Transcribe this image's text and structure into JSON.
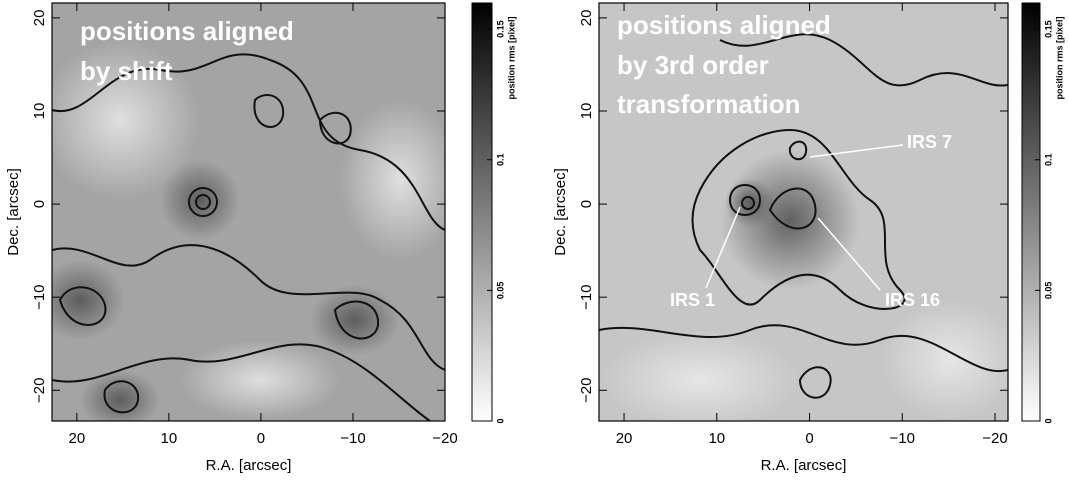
{
  "chart_data": [
    {
      "type": "image",
      "xlabel": "R.A. [arcsec]",
      "ylabel": "Dec. [arcsec]",
      "xlim": [
        22.7,
        -20
      ],
      "ylim": [
        -23.3,
        21.6
      ],
      "xticks": [
        20,
        10,
        0,
        {
          "value": -10,
          "label": "−10"
        },
        {
          "value": -20,
          "label": "−20"
        }
      ],
      "yticks": [
        {
          "value": -20,
          "label": "−20"
        },
        {
          "value": -10,
          "label": "−10"
        },
        0,
        10,
        20
      ],
      "colorbar_label": "position rms [pixel]",
      "clim": [
        0,
        0.16
      ],
      "cticks": [
        0,
        0.05,
        0.1,
        0.15
      ],
      "annotations": [
        "positions aligned",
        "by shift"
      ]
    },
    {
      "type": "image",
      "xlabel": "R.A. [arcsec]",
      "ylabel": "Dec. [arcsec]",
      "xlim": [
        22.7,
        -21.4
      ],
      "ylim": [
        -23.3,
        21.6
      ],
      "xticks": [
        20,
        10,
        0,
        {
          "value": -10,
          "label": "−10"
        },
        {
          "value": -20,
          "label": "−20"
        }
      ],
      "yticks": [
        {
          "value": -20,
          "label": "−20"
        },
        {
          "value": -10,
          "label": "−10"
        },
        0,
        10,
        20
      ],
      "colorbar_label": "position rms [pixel]",
      "clim": [
        0,
        0.16
      ],
      "cticks": [
        0,
        0.05,
        0.1,
        0.15
      ],
      "annotations": [
        "positions aligned",
        "by 3rd order",
        "transformation",
        "IRS 7",
        "IRS 1",
        "IRS 16"
      ]
    }
  ]
}
